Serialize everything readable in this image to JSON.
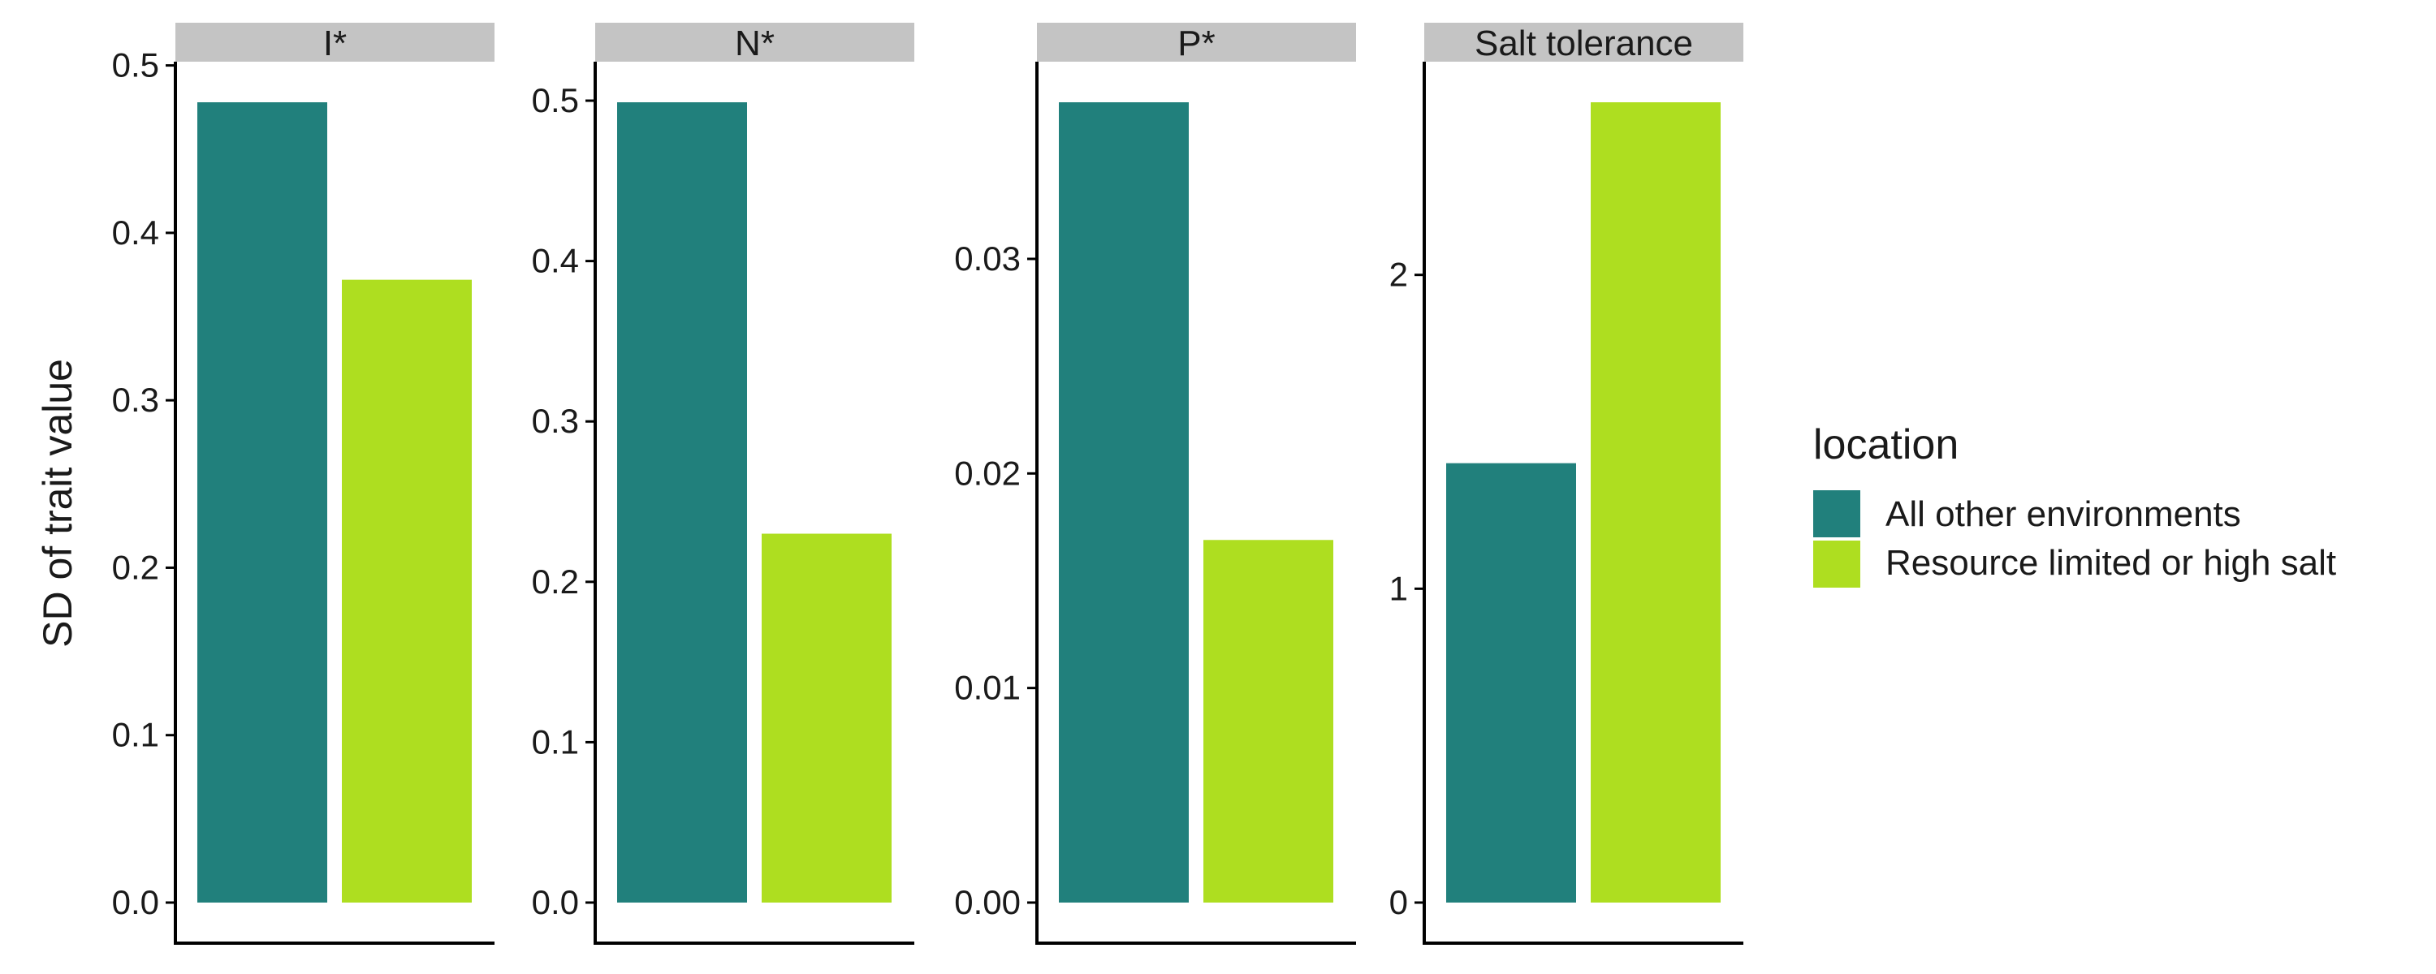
{
  "chart_data": {
    "type": "bar",
    "ylabel": "SD of trait value",
    "legend": {
      "title": "location",
      "position": "right",
      "entries": [
        {
          "name": "All other environments",
          "color": "#21807C"
        },
        {
          "name": "Resource limited or high salt",
          "color": "#AEDE20"
        }
      ]
    },
    "strip_color": "#C4C4C4",
    "panels": [
      {
        "title": "I*",
        "ylim": [
          0,
          0.5
        ],
        "ticks": [
          "0.0",
          "0.1",
          "0.2",
          "0.3",
          "0.4",
          "0.5"
        ],
        "series": [
          {
            "name": "All other environments",
            "value": 0.478
          },
          {
            "name": "Resource limited or high salt",
            "value": 0.372
          }
        ]
      },
      {
        "title": "N*",
        "ylim": [
          0,
          0.5
        ],
        "ticks": [
          "0.0",
          "0.1",
          "0.2",
          "0.3",
          "0.4",
          "0.5"
        ],
        "series": [
          {
            "name": "All other environments",
            "value": 0.499
          },
          {
            "name": "Resource limited or high salt",
            "value": 0.23
          }
        ]
      },
      {
        "title": "P*",
        "ylim": [
          0,
          0.03
        ],
        "ticks": [
          "0.00",
          "0.01",
          "0.02",
          "0.03"
        ],
        "series": [
          {
            "name": "All other environments",
            "value": 0.0373
          },
          {
            "name": "Resource limited or high salt",
            "value": 0.0169
          }
        ]
      },
      {
        "title": "Salt tolerance",
        "ylim": [
          0,
          2
        ],
        "ticks": [
          "0",
          "1",
          "2"
        ],
        "series": [
          {
            "name": "All other environments",
            "value": 1.4
          },
          {
            "name": "Resource limited or high salt",
            "value": 2.55
          }
        ]
      }
    ]
  }
}
